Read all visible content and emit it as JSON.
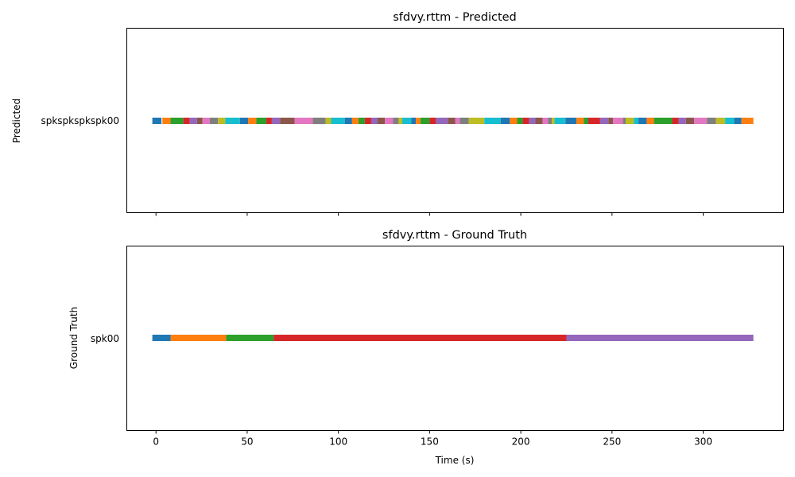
{
  "chart_data": [
    {
      "type": "timeline",
      "title": "sfdvy.rttm - Predicted",
      "ylabel": "Predicted",
      "xlabel": "",
      "categories": [
        "spkspkspkspk00"
      ],
      "xlim": [
        -16,
        344
      ],
      "xticks": [
        0,
        50,
        100,
        150,
        200,
        250,
        300
      ],
      "show_xtick_labels": false,
      "grid": false,
      "segment_colors": [
        "#1f77b4",
        "#ff7f0e",
        "#2ca02c",
        "#d62728",
        "#9467bd",
        "#8c564b",
        "#e377c2",
        "#7f7f7f",
        "#bcbd22",
        "#17becf"
      ],
      "segments": [
        [
          -2,
          3
        ],
        [
          3.5,
          8
        ],
        [
          8,
          15
        ],
        [
          15,
          18.5
        ],
        [
          18.5,
          22.5
        ],
        [
          22.5,
          25.5
        ],
        [
          25.5,
          29.5
        ],
        [
          29.5,
          34
        ],
        [
          34,
          38
        ],
        [
          38,
          46
        ],
        [
          46,
          50.5
        ],
        [
          50.5,
          55
        ],
        [
          55,
          60.5
        ],
        [
          60.5,
          63.5
        ],
        [
          63.5,
          68
        ],
        [
          68,
          76
        ],
        [
          76,
          86
        ],
        [
          86,
          93
        ],
        [
          93,
          96
        ],
        [
          96,
          103.5
        ],
        [
          103.5,
          107.5
        ],
        [
          107.5,
          111
        ],
        [
          111,
          114.5
        ],
        [
          114.5,
          118
        ],
        [
          118,
          121.5
        ],
        [
          121.5,
          125.5
        ],
        [
          125.5,
          130
        ],
        [
          130,
          133
        ],
        [
          133,
          135
        ],
        [
          135,
          140
        ],
        [
          140,
          142.5
        ],
        [
          142.5,
          145
        ],
        [
          145,
          150
        ],
        [
          150,
          153.5
        ],
        [
          153.5,
          160
        ],
        [
          160,
          164
        ],
        [
          164,
          166.5
        ],
        [
          166.5,
          171.5
        ],
        [
          171.5,
          180
        ],
        [
          180,
          189
        ],
        [
          189,
          194
        ],
        [
          194,
          198
        ],
        [
          198,
          201
        ],
        [
          201,
          204.5
        ],
        [
          204.5,
          208
        ],
        [
          208,
          212
        ],
        [
          212,
          215
        ],
        [
          215,
          217
        ],
        [
          217,
          218.5
        ],
        [
          218.5,
          224.5
        ],
        [
          224.5,
          230.5
        ],
        [
          230.5,
          234.5
        ],
        [
          234.5,
          237
        ],
        [
          237,
          243.5
        ],
        [
          243.5,
          248
        ],
        [
          248,
          250.5
        ],
        [
          250.5,
          256
        ],
        [
          256,
          257.5
        ],
        [
          257.5,
          262
        ],
        [
          262,
          264.5
        ],
        [
          264.5,
          269
        ],
        [
          269,
          273
        ],
        [
          273,
          283
        ],
        [
          283,
          286.5
        ],
        [
          286.5,
          290.5
        ],
        [
          290.5,
          295
        ],
        [
          295,
          302
        ],
        [
          302,
          307
        ],
        [
          307,
          312
        ],
        [
          312,
          317
        ],
        [
          317,
          321
        ],
        [
          321,
          327.5
        ]
      ]
    },
    {
      "type": "timeline",
      "title": "sfdvy.rttm - Ground Truth",
      "ylabel": "Ground Truth",
      "xlabel": "Time (s)",
      "categories": [
        "spk00"
      ],
      "xlim": [
        -16,
        344
      ],
      "xticks": [
        0,
        50,
        100,
        150,
        200,
        250,
        300
      ],
      "show_xtick_labels": true,
      "grid": false,
      "segment_colors": [
        "#1f77b4",
        "#ff7f0e",
        "#2ca02c",
        "#d62728",
        "#9467bd"
      ],
      "segments": [
        [
          -2,
          8
        ],
        [
          8,
          38.5
        ],
        [
          38.5,
          64.5
        ],
        [
          64.5,
          225
        ],
        [
          225,
          327.5
        ]
      ]
    }
  ]
}
